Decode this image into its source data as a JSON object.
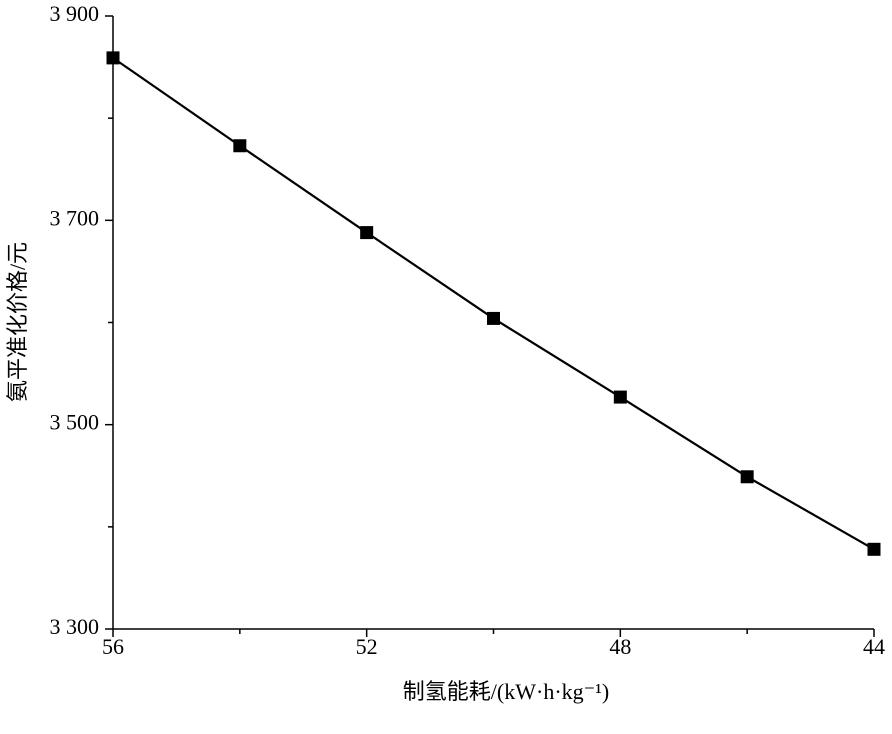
{
  "chart_data": {
    "type": "line",
    "x_label": "制氢能耗/(kW·h·kg⁻¹)",
    "y_label": "氨平准化价格/元",
    "x": [
      56,
      54,
      52,
      50,
      48,
      46,
      44
    ],
    "series": [
      {
        "name": null,
        "color": "#000000",
        "marker": "square",
        "values": [
          3859,
          3773,
          3688,
          3604,
          3527,
          3449,
          3378
        ]
      }
    ],
    "xlim": [
      56,
      44
    ],
    "xticks": [
      56,
      52,
      48,
      44
    ],
    "xminorticks": [
      54,
      50,
      46
    ],
    "ylim": [
      3300,
      3900
    ],
    "yticks": [
      {
        "value": 3300,
        "label": "3 300"
      },
      {
        "value": 3500,
        "label": "3 500"
      },
      {
        "value": 3700,
        "label": "3 700"
      },
      {
        "value": 3900,
        "label": "3 900"
      }
    ],
    "yminorticks": [
      3400,
      3600,
      3800
    ],
    "grid": false
  }
}
